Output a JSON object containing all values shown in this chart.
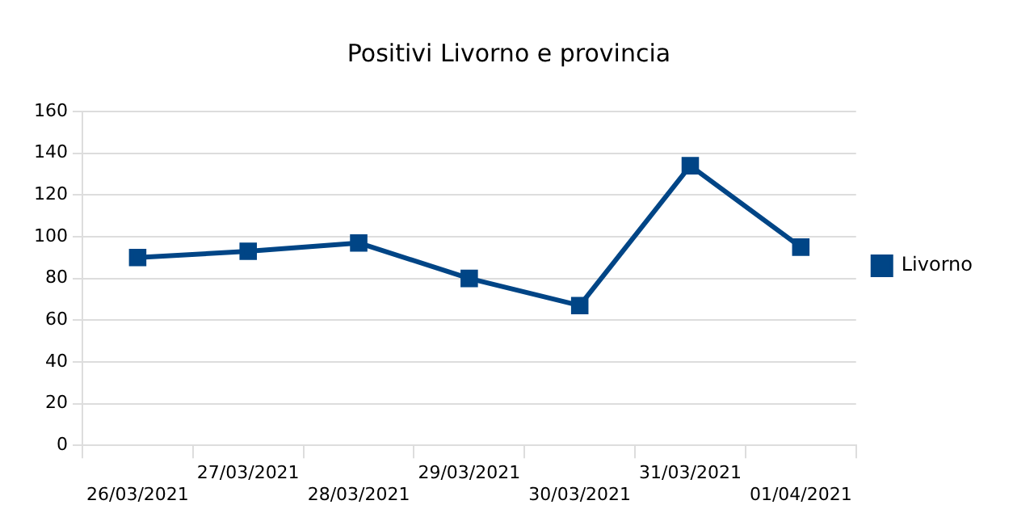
{
  "chart_data": {
    "type": "line",
    "title": "Positivi Livorno e provincia",
    "categories": [
      "26/03/2021",
      "27/03/2021",
      "28/03/2021",
      "29/03/2021",
      "30/03/2021",
      "31/03/2021",
      "01/04/2021"
    ],
    "series": [
      {
        "name": "Livorno",
        "color": "#004586",
        "values": [
          90,
          93,
          97,
          80,
          67,
          134,
          95
        ]
      }
    ],
    "ylim": [
      0,
      160
    ],
    "yticks": [
      0,
      20,
      40,
      60,
      80,
      100,
      120,
      140,
      160
    ],
    "grid": "y",
    "legend": "right",
    "marker": "square",
    "line_style": "solid"
  }
}
